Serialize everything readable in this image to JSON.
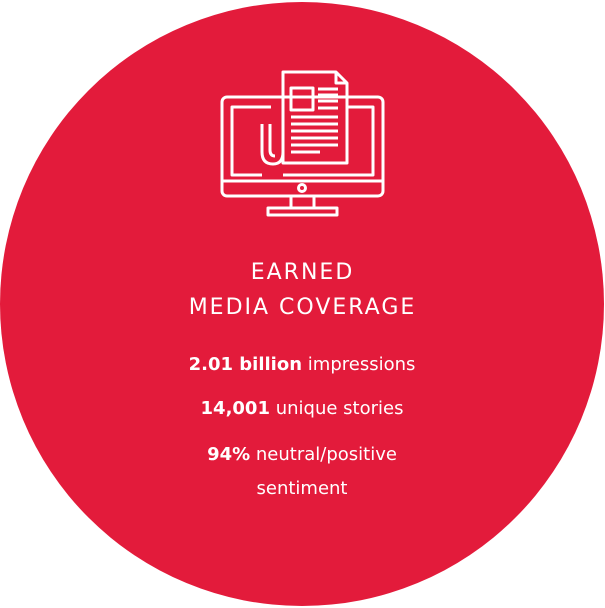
{
  "header": {
    "title_lines": [
      "EARNED",
      "MEDIA COVERAGE"
    ]
  },
  "stats": [
    {
      "value": "2.01 billion",
      "label": "impressions"
    },
    {
      "value": "14,001",
      "label": "unique stories"
    },
    {
      "value": "94%",
      "label": "neutral/positive sentiment"
    }
  ]
}
